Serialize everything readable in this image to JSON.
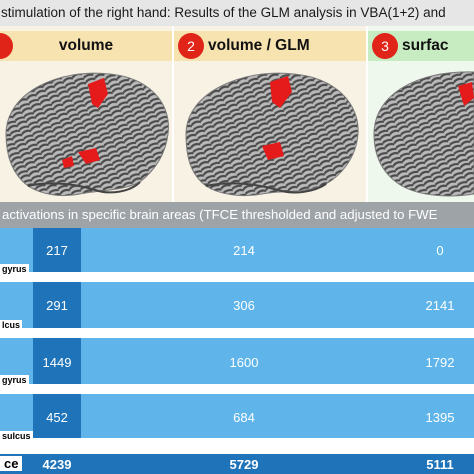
{
  "title": "stimulation of the right hand: Results of the GLM analysis in VBA(1+2) and",
  "panels": [
    {
      "badge": "",
      "label": "volume",
      "bg": "#f6e3b0"
    },
    {
      "badge": "2",
      "label": "volume / GLM",
      "bg": "#f6e3b0"
    },
    {
      "badge": "3",
      "label": "surfac",
      "bg": "#c8ecc1"
    }
  ],
  "subtitle": "activations in specific brain areas (TFCE thresholded and adjusted to FWE",
  "table": {
    "rows": [
      {
        "label": "gyrus",
        "values": [
          "217",
          "214",
          "0"
        ]
      },
      {
        "label": "lcus",
        "values": [
          "291",
          "306",
          "2141"
        ]
      },
      {
        "label": "gyrus",
        "values": [
          "1449",
          "1600",
          "1792"
        ]
      },
      {
        "label": "sulcus",
        "values": [
          "452",
          "684",
          "1395"
        ]
      },
      {
        "label": "ce",
        "values": [
          "4239",
          "5729",
          "5111"
        ]
      }
    ]
  },
  "colors": {
    "row_light": "#5fb5ea",
    "row_dark": "#1f73b8",
    "badge": "#e02418",
    "activation": "#e51a1a"
  }
}
